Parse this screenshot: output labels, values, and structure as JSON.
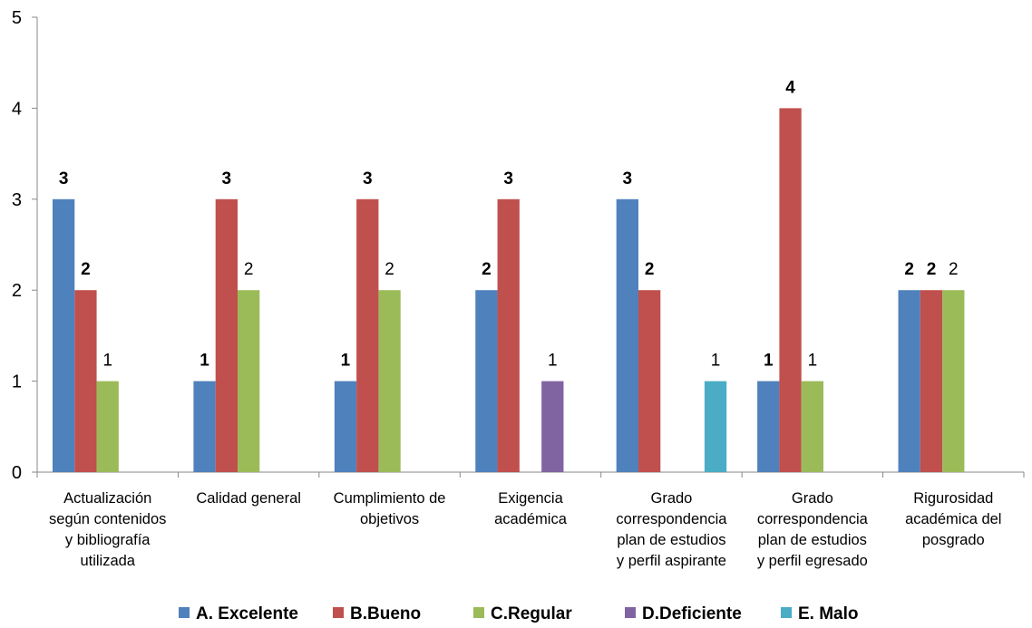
{
  "chart_data": {
    "type": "bar",
    "title": "",
    "xlabel": "",
    "ylabel": "",
    "ylim": [
      0,
      5
    ],
    "yticks": [
      "0",
      "1",
      "2",
      "3",
      "4",
      "5"
    ],
    "grid": false,
    "legend_position": "bottom",
    "categories": [
      [
        "Actualización",
        "según contenidos",
        "y bibliografía",
        "utilizada"
      ],
      [
        "Calidad general"
      ],
      [
        "Cumplimiento de",
        "objetivos"
      ],
      [
        "Exigencia",
        "académica"
      ],
      [
        "Grado",
        "correspondencia",
        "plan de estudios",
        "y perfil aspirante"
      ],
      [
        "Grado",
        "correspondencia",
        "plan de estudios",
        "y perfil egresado"
      ],
      [
        "Rigurosidad",
        "académica del",
        "posgrado"
      ]
    ],
    "series": [
      {
        "name": "A. Excelente",
        "color": "#4F81BD",
        "bold_labels": true,
        "values": [
          3,
          1,
          1,
          2,
          3,
          1,
          2
        ],
        "labels": [
          "3",
          "1",
          "1",
          "2",
          "3",
          "1",
          "2"
        ]
      },
      {
        "name": "B.Bueno",
        "color": "#C0504D",
        "bold_labels": true,
        "values": [
          2,
          3,
          3,
          3,
          2,
          4,
          2
        ],
        "labels": [
          "2",
          "3",
          "3",
          "3",
          "2",
          "4",
          "2"
        ]
      },
      {
        "name": "C.Regular",
        "color": "#9BBB59",
        "bold_labels": false,
        "values": [
          1,
          2,
          2,
          0,
          0,
          1,
          2
        ],
        "labels": [
          "1",
          "2",
          "2",
          "",
          "",
          "1",
          "2"
        ]
      },
      {
        "name": "D.Deficiente",
        "color": "#8064A2",
        "bold_labels": false,
        "values": [
          0,
          0,
          0,
          1,
          0,
          0,
          0
        ],
        "labels": [
          "",
          "",
          "",
          "1",
          "",
          "",
          ""
        ]
      },
      {
        "name": "E. Malo",
        "color": "#4BACC6",
        "bold_labels": false,
        "values": [
          0,
          0,
          0,
          0,
          1,
          0,
          0
        ],
        "labels": [
          "",
          "",
          "",
          "",
          "1",
          "",
          ""
        ]
      }
    ]
  }
}
